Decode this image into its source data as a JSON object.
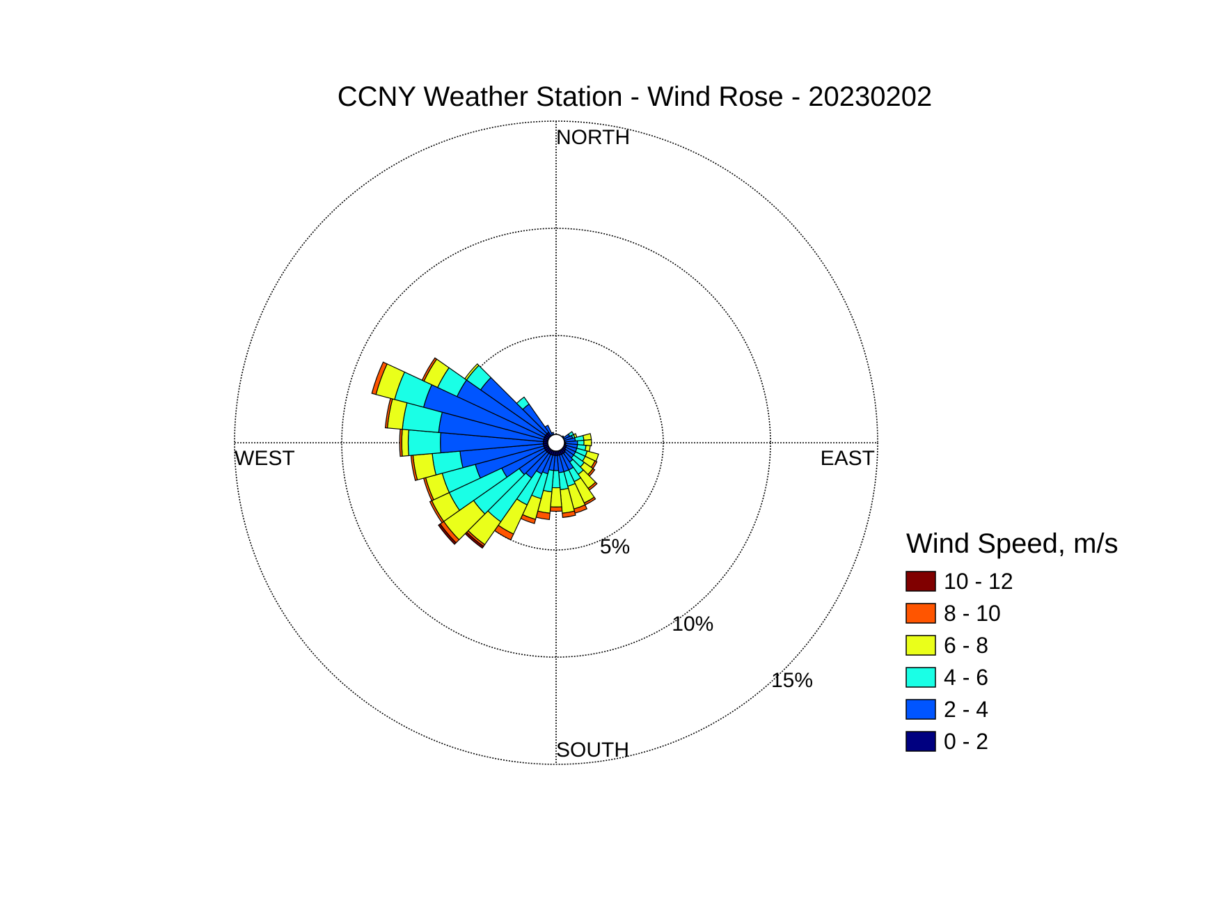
{
  "chart_data": {
    "type": "windrose",
    "title": "CCNY Weather Station - Wind Rose - 20230202",
    "directions": {
      "north": "NORTH",
      "south": "SOUTH",
      "east": "EAST",
      "west": "WEST"
    },
    "radial_ticks": [
      {
        "value": 5,
        "label": "5%"
      },
      {
        "value": 10,
        "label": "10%"
      },
      {
        "value": 15,
        "label": "15%"
      }
    ],
    "radial_max": 15,
    "grid": true,
    "legend": {
      "title": "Wind Speed, m/s",
      "placement": "right",
      "bins": [
        {
          "label": "10 - 12",
          "color": "#800000"
        },
        {
          "label": "8 - 10",
          "color": "#ff5500"
        },
        {
          "label": "6 - 8",
          "color": "#eaff1a"
        },
        {
          "label": "4 - 6",
          "color": "#1affe6"
        },
        {
          "label": "2 - 4",
          "color": "#0055ff"
        },
        {
          "label": "0 - 2",
          "color": "#000080"
        }
      ]
    },
    "bin_colors_inner_to_outer": [
      "#000080",
      "#0055ff",
      "#1affe6",
      "#eaff1a",
      "#ff5500",
      "#800000"
    ],
    "sector_width_deg": 10,
    "sectors": [
      {
        "direction_deg": 0,
        "cumulative_percent": [
          0.15,
          0.3,
          0.35,
          0.35,
          0.35,
          0.35
        ]
      },
      {
        "direction_deg": 10,
        "cumulative_percent": [
          0.15,
          0.3,
          0.3,
          0.3,
          0.3,
          0.3
        ]
      },
      {
        "direction_deg": 20,
        "cumulative_percent": [
          0.2,
          0.3,
          0.3,
          0.3,
          0.3,
          0.3
        ]
      },
      {
        "direction_deg": 30,
        "cumulative_percent": [
          0.2,
          0.3,
          0.3,
          0.3,
          0.3,
          0.3
        ]
      },
      {
        "direction_deg": 40,
        "cumulative_percent": [
          0.2,
          0.3,
          0.3,
          0.3,
          0.3,
          0.3
        ]
      },
      {
        "direction_deg": 50,
        "cumulative_percent": [
          0.3,
          0.45,
          0.45,
          0.45,
          0.45,
          0.45
        ]
      },
      {
        "direction_deg": 60,
        "cumulative_percent": [
          0.4,
          0.7,
          0.9,
          0.9,
          0.9,
          0.9
        ]
      },
      {
        "direction_deg": 70,
        "cumulative_percent": [
          0.4,
          0.8,
          0.9,
          1.0,
          1.0,
          1.0
        ]
      },
      {
        "direction_deg": 80,
        "cumulative_percent": [
          0.4,
          0.9,
          1.3,
          1.65,
          1.65,
          1.65
        ]
      },
      {
        "direction_deg": 90,
        "cumulative_percent": [
          0.45,
          1.0,
          1.3,
          1.65,
          1.65,
          1.65
        ]
      },
      {
        "direction_deg": 100,
        "cumulative_percent": [
          0.45,
          1.0,
          1.4,
          1.6,
          1.6,
          1.6
        ]
      },
      {
        "direction_deg": 110,
        "cumulative_percent": [
          0.5,
          1.0,
          1.5,
          2.05,
          2.05,
          2.05
        ]
      },
      {
        "direction_deg": 120,
        "cumulative_percent": [
          0.5,
          1.0,
          1.5,
          2.0,
          2.1,
          2.1
        ]
      },
      {
        "direction_deg": 130,
        "cumulative_percent": [
          0.55,
          1.0,
          1.6,
          2.1,
          2.2,
          2.2
        ]
      },
      {
        "direction_deg": 140,
        "cumulative_percent": [
          0.6,
          1.1,
          1.8,
          2.6,
          2.7,
          2.7
        ]
      },
      {
        "direction_deg": 150,
        "cumulative_percent": [
          0.6,
          1.4,
          2.0,
          3.1,
          3.2,
          3.2
        ]
      },
      {
        "direction_deg": 160,
        "cumulative_percent": [
          0.6,
          1.4,
          2.1,
          3.2,
          3.4,
          3.4
        ]
      },
      {
        "direction_deg": 170,
        "cumulative_percent": [
          0.6,
          1.4,
          2.2,
          3.3,
          3.5,
          3.5
        ]
      },
      {
        "direction_deg": 180,
        "cumulative_percent": [
          0.6,
          1.3,
          2.1,
          3.0,
          3.2,
          3.2
        ]
      },
      {
        "direction_deg": 190,
        "cumulative_percent": [
          0.6,
          1.3,
          2.3,
          3.3,
          3.6,
          3.6
        ]
      },
      {
        "direction_deg": 200,
        "cumulative_percent": [
          0.6,
          1.5,
          2.7,
          3.7,
          3.9,
          3.9
        ]
      },
      {
        "direction_deg": 210,
        "cumulative_percent": [
          0.6,
          1.6,
          3.2,
          4.7,
          5.0,
          5.0
        ]
      },
      {
        "direction_deg": 220,
        "cumulative_percent": [
          0.6,
          2.0,
          4.5,
          5.8,
          5.9,
          6.0
        ]
      },
      {
        "direction_deg": 230,
        "cumulative_percent": [
          0.6,
          2.1,
          4.7,
          6.4,
          6.6,
          6.7
        ]
      },
      {
        "direction_deg": 240,
        "cumulative_percent": [
          0.6,
          2.8,
          5.5,
          6.4,
          6.5,
          6.5
        ]
      },
      {
        "direction_deg": 250,
        "cumulative_percent": [
          0.6,
          3.9,
          5.5,
          6.3,
          6.4,
          6.4
        ]
      },
      {
        "direction_deg": 260,
        "cumulative_percent": [
          0.6,
          4.5,
          5.8,
          6.7,
          6.8,
          6.8
        ]
      },
      {
        "direction_deg": 270,
        "cumulative_percent": [
          0.6,
          5.4,
          6.9,
          7.2,
          7.3,
          7.3
        ]
      },
      {
        "direction_deg": 280,
        "cumulative_percent": [
          0.6,
          5.5,
          7.2,
          7.9,
          8.0,
          8.0
        ]
      },
      {
        "direction_deg": 290,
        "cumulative_percent": [
          0.6,
          6.4,
          7.8,
          8.7,
          8.9,
          8.9
        ]
      },
      {
        "direction_deg": 300,
        "cumulative_percent": [
          0.6,
          5.1,
          6.1,
          6.8,
          6.9,
          6.9
        ]
      },
      {
        "direction_deg": 310,
        "cumulative_percent": [
          0.6,
          4.3,
          5.1,
          5.2,
          5.2,
          5.2
        ]
      },
      {
        "direction_deg": 320,
        "cumulative_percent": [
          0.6,
          2.2,
          2.6,
          2.6,
          2.6,
          2.6
        ]
      },
      {
        "direction_deg": 330,
        "cumulative_percent": [
          0.4,
          0.9,
          0.9,
          0.9,
          0.9,
          0.9
        ]
      },
      {
        "direction_deg": 340,
        "cumulative_percent": [
          0.3,
          0.5,
          0.5,
          0.5,
          0.5,
          0.5
        ]
      },
      {
        "direction_deg": 350,
        "cumulative_percent": [
          0.2,
          0.35,
          0.35,
          0.35,
          0.35,
          0.35
        ]
      }
    ]
  }
}
